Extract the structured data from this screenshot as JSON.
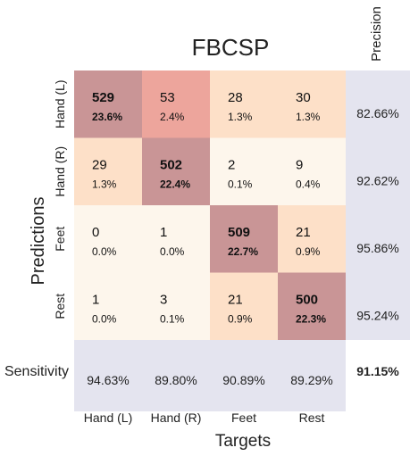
{
  "chart_data": {
    "type": "heatmap",
    "title": "FBCSP",
    "xlabel": "Targets",
    "ylabel": "Predictions",
    "x_categories": [
      "Hand (L)",
      "Hand (R)",
      "Feet",
      "Rest"
    ],
    "y_categories": [
      "Hand (L)",
      "Hand (R)",
      "Feet",
      "Rest"
    ],
    "counts": [
      [
        529,
        53,
        28,
        30
      ],
      [
        29,
        502,
        2,
        9
      ],
      [
        0,
        1,
        509,
        21
      ],
      [
        1,
        3,
        21,
        500
      ]
    ],
    "percents": [
      [
        "23.6%",
        "2.4%",
        "1.3%",
        "1.3%"
      ],
      [
        "1.3%",
        "22.4%",
        "0.1%",
        "0.4%"
      ],
      [
        "0.0%",
        "0.0%",
        "22.7%",
        "0.9%"
      ],
      [
        "0.0%",
        "0.1%",
        "0.9%",
        "22.3%"
      ]
    ],
    "precision_label": "Precision",
    "precision": [
      "82.66%",
      "92.62%",
      "95.86%",
      "95.24%"
    ],
    "sensitivity_label": "Sensitivity",
    "sensitivity": [
      "94.63%",
      "89.80%",
      "90.89%",
      "89.29%"
    ],
    "overall_accuracy": "91.15%",
    "colors": {
      "diagonal": "#c99596",
      "low": "#fdf6ec",
      "mid": "#fde0c8",
      "high": "#eda59c",
      "summary_bg": "#e4e4ef"
    }
  }
}
